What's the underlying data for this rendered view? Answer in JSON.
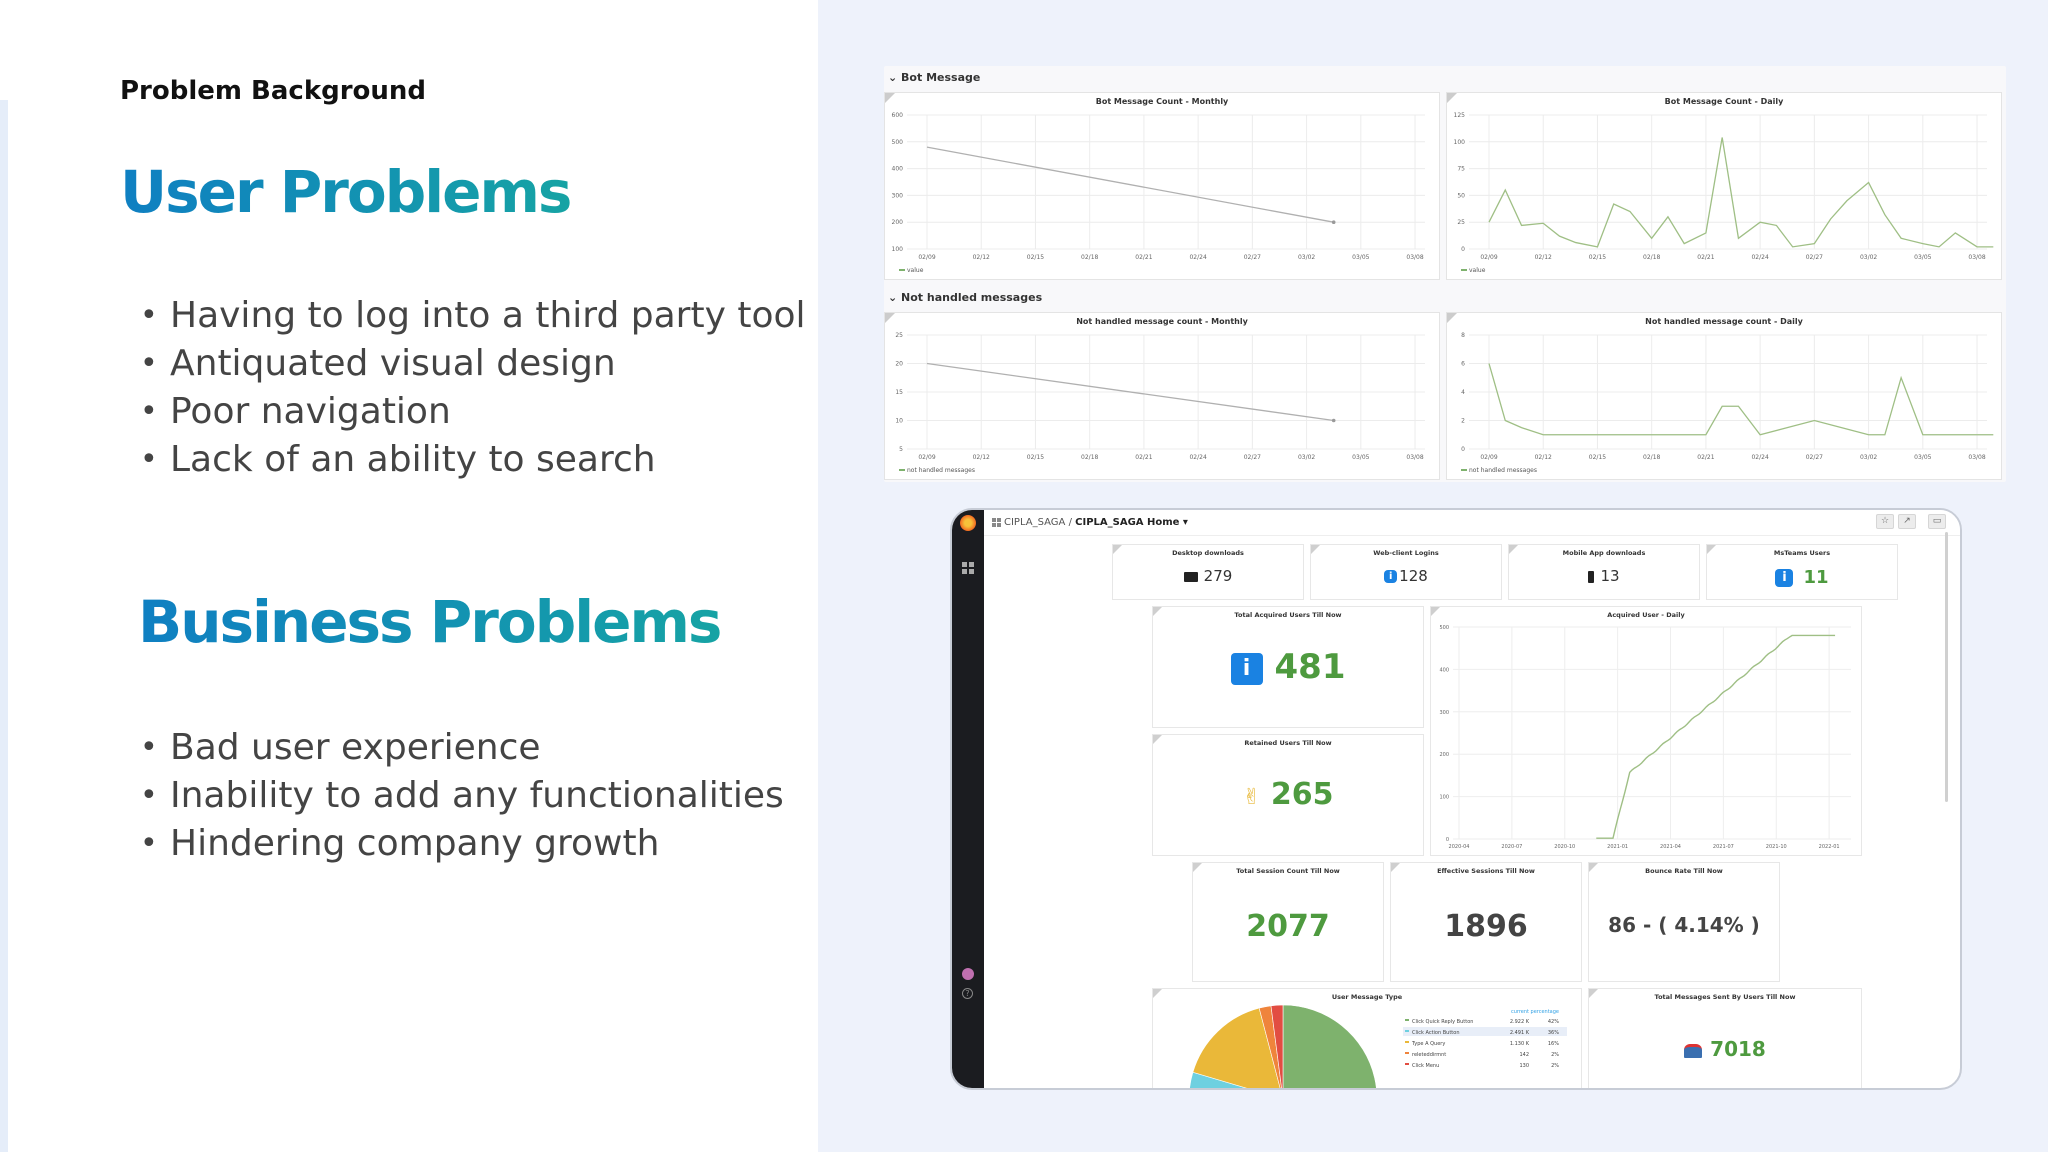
{
  "slide": {
    "kicker": "Problem Background",
    "user_heading": "User Problems",
    "user_items": [
      "Having to log into a third party tool",
      "Antiquated visual design",
      "Poor navigation",
      "Lack of an ability to search"
    ],
    "business_heading": "Business Problems",
    "business_items": [
      "Bad user experience",
      "Inability to add any functionalities",
      "Hindering company growth"
    ]
  },
  "top_dashboard": {
    "row1_title": "Bot Message",
    "row2_title": "Not handled messages",
    "x_ticks": [
      "02/09",
      "02/12",
      "02/15",
      "02/18",
      "02/21",
      "02/24",
      "02/27",
      "03/02",
      "03/05",
      "03/08"
    ],
    "panels": [
      {
        "title": "Bot Message Count - Monthly",
        "legend": "value",
        "yticks": [
          "600",
          "500",
          "400",
          "300",
          "200",
          "100"
        ],
        "ylim": [
          100,
          600
        ],
        "x": [
          0,
          7.5
        ],
        "y": [
          480,
          200
        ]
      },
      {
        "title": "Bot Message Count - Daily",
        "legend": "value",
        "yticks": [
          "125",
          "100",
          "75",
          "50",
          "25",
          "0"
        ],
        "ylim": [
          0,
          125
        ],
        "x": [
          0,
          0.3,
          0.6,
          1,
          1.3,
          1.6,
          2,
          2.3,
          2.6,
          3,
          3.3,
          3.6,
          4,
          4.3,
          4.6,
          5,
          5.3,
          5.6,
          6,
          6.3,
          6.6,
          7,
          7.3,
          7.6,
          8,
          8.3,
          8.6,
          9,
          9.3
        ],
        "y": [
          25,
          55,
          22,
          24,
          12,
          6,
          2,
          42,
          35,
          10,
          30,
          5,
          15,
          104,
          10,
          25,
          22,
          2,
          5,
          28,
          45,
          62,
          32,
          10,
          5,
          2,
          15,
          2,
          2
        ]
      },
      {
        "title": "Not handled message count - Monthly",
        "legend": "not handled messages",
        "yticks": [
          "25",
          "20",
          "15",
          "10",
          "5"
        ],
        "ylim": [
          5,
          25
        ],
        "x": [
          0,
          7.5
        ],
        "y": [
          20,
          10
        ]
      },
      {
        "title": "Not handled message count - Daily",
        "legend": "not handled messages",
        "yticks": [
          "8",
          "6",
          "4",
          "2",
          "0"
        ],
        "ylim": [
          0,
          8
        ],
        "x": [
          0,
          0.3,
          0.6,
          1,
          1.5,
          2,
          2.5,
          3,
          3.5,
          4,
          4.3,
          4.6,
          5,
          5.5,
          6,
          6.5,
          7,
          7.3,
          7.6,
          8,
          8.5,
          9,
          9.3
        ],
        "y": [
          6,
          2,
          1.5,
          1,
          1,
          1,
          1,
          1,
          1,
          1,
          3,
          3,
          1,
          1.5,
          2,
          1.5,
          1,
          1,
          5,
          1,
          1,
          1,
          1
        ]
      }
    ]
  },
  "grafana": {
    "crumb_org": "CIPLA_SAGA /",
    "crumb_page": "CIPLA_SAGA Home ▾",
    "tiles": {
      "desktop": {
        "title": "Desktop downloads",
        "value": "279"
      },
      "web": {
        "title": "Web-client Logins",
        "value": "128"
      },
      "mobile": {
        "title": "Mobile App downloads",
        "value": "13"
      },
      "msteams": {
        "title": "MsTeams Users",
        "value": "11"
      },
      "acquired": {
        "title": "Total Acquired Users Till Now",
        "value": "481"
      },
      "daily": {
        "title": "Acquired User - Daily"
      },
      "retained": {
        "title": "Retained Users Till Now",
        "value": "265"
      },
      "session": {
        "title": "Total Session Count Till Now",
        "value": "2077"
      },
      "effective": {
        "title": "Effective Sessions Till Now",
        "value": "1896"
      },
      "bounce": {
        "title": "Bounce Rate Till Now",
        "value": "86 - ( 4.14% )"
      },
      "msgtype": {
        "title": "User Message Type"
      },
      "total_msgs": {
        "title": "Total Messages Sent By Users Till Now",
        "value": "7018"
      }
    },
    "acquired_daily": {
      "yticks": [
        "500",
        "400",
        "300",
        "200",
        "100",
        "0"
      ],
      "xticks": [
        "2020-04",
        "2020-07",
        "2020-10",
        "2021-01",
        "2021-04",
        "2021-07",
        "2021-10",
        "2022-01"
      ]
    },
    "pie_legend": {
      "headers": [
        "current",
        "percentage"
      ],
      "rows": [
        {
          "label": "Click Quick Reply Button",
          "current": "2.922 K",
          "pct": "42%",
          "color": "#7eb26d"
        },
        {
          "label": "Click Action Button",
          "current": "2.491 K",
          "pct": "36%",
          "color": "#6ed0e0"
        },
        {
          "label": "Type A Query",
          "current": "1.130 K",
          "pct": "16%",
          "color": "#eab839"
        },
        {
          "label": "releteddirmnt",
          "current": "142",
          "pct": "2%",
          "color": "#ef843c"
        },
        {
          "label": "Click Menu",
          "current": "130",
          "pct": "2%",
          "color": "#e24d42"
        }
      ]
    }
  },
  "colors": {
    "accent_blue": "#0f7fc2",
    "accent_teal": "#16a3a4",
    "stat_green": "#4e9a3f",
    "line_green": "#9fbf85"
  }
}
